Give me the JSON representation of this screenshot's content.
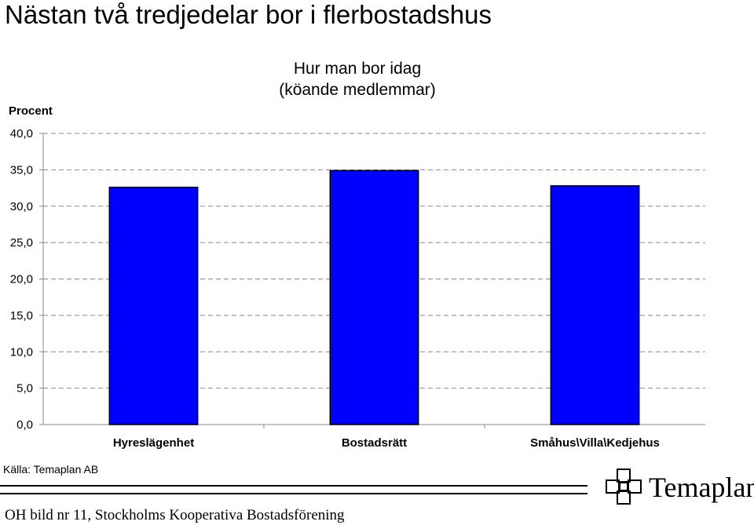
{
  "page": {
    "title": "Nästan två tredjedelar bor i flerbostadshus",
    "source": "Källa: Temaplan AB",
    "footer": "OH bild nr 11, Stockholms Kooperativa Bostadsförening",
    "logo_text": "Temaplan"
  },
  "chart_data": {
    "type": "bar",
    "title_lines": [
      "Hur man bor idag",
      "(köande medlemmar)"
    ],
    "ylabel": "Procent",
    "xlabel": "",
    "categories": [
      "Hyreslägenhet",
      "Bostadsrätt",
      "Småhus\\Villa\\Kedjehus"
    ],
    "values": [
      32.6,
      34.9,
      32.8
    ],
    "ylim": [
      0,
      40
    ],
    "yticks": [
      "0,0",
      "5,0",
      "10,0",
      "15,0",
      "20,0",
      "25,0",
      "30,0",
      "35,0",
      "40,0"
    ],
    "grid": true,
    "bar_color": "#0000ff"
  }
}
